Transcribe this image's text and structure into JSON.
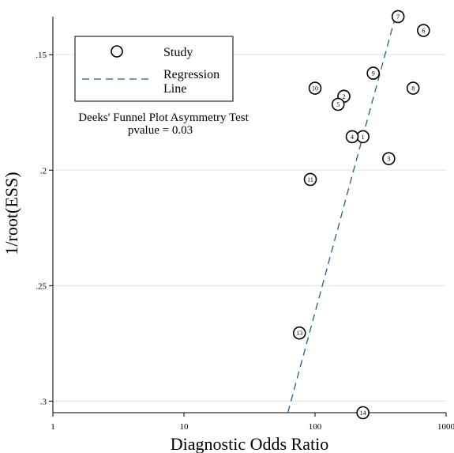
{
  "chart_data": {
    "type": "scatter",
    "xlabel": "Diagnostic Odds Ratio",
    "ylabel": "1/root(ESS)",
    "x_scale": "log",
    "xlim": [
      1,
      1000
    ],
    "ylim": [
      0.305,
      0.1335
    ],
    "y_reversed": true,
    "grid": "horizontal",
    "x_ticks": [
      "1",
      "10",
      "100",
      "1000"
    ],
    "x_tick_values": [
      1,
      10,
      100,
      1000
    ],
    "y_ticks": [
      ".15",
      ".2",
      ".25",
      ".3"
    ],
    "y_tick_values": [
      0.15,
      0.2,
      0.25,
      0.3
    ],
    "grid_color": "#d9eeee",
    "line_color": "#1f5f8b",
    "legend": {
      "placement": "top-left",
      "study_label": "Study",
      "regression_label_1": "Regression",
      "regression_label_2": "Line"
    },
    "annotation": {
      "line1": "Deeks' Funnel Plot Asymmetry Test",
      "line2": "pvalue =   0.03"
    },
    "points": [
      {
        "label": "1",
        "x": 232,
        "y": 0.1855
      },
      {
        "label": "2",
        "x": 166,
        "y": 0.168
      },
      {
        "label": "3",
        "x": 365,
        "y": 0.195
      },
      {
        "label": "4",
        "x": 192,
        "y": 0.1855
      },
      {
        "label": "5",
        "x": 150,
        "y": 0.1715
      },
      {
        "label": "6",
        "x": 672,
        "y": 0.1395
      },
      {
        "label": "7",
        "x": 430,
        "y": 0.1335
      },
      {
        "label": "8",
        "x": 560,
        "y": 0.1645
      },
      {
        "label": "9",
        "x": 278,
        "y": 0.158
      },
      {
        "label": "10",
        "x": 100,
        "y": 0.1645
      },
      {
        "label": "11",
        "x": 92,
        "y": 0.204
      },
      {
        "label": "13",
        "x": 76,
        "y": 0.2705
      },
      {
        "label": "14",
        "x": 232,
        "y": 0.305
      }
    ],
    "regression_line": {
      "x": [
        62,
        410
      ],
      "y": [
        0.305,
        0.1335
      ]
    }
  }
}
